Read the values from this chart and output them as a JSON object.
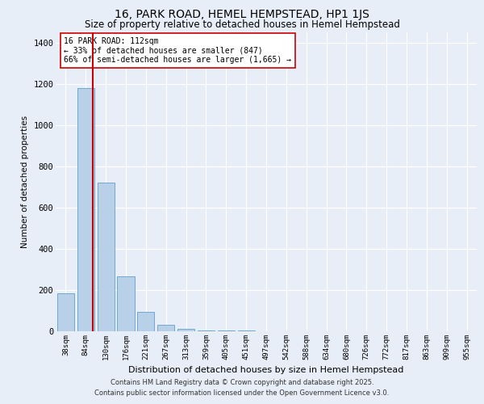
{
  "title": "16, PARK ROAD, HEMEL HEMPSTEAD, HP1 1JS",
  "subtitle": "Size of property relative to detached houses in Hemel Hempstead",
  "xlabel": "Distribution of detached houses by size in Hemel Hempstead",
  "ylabel": "Number of detached properties",
  "categories": [
    "38sqm",
    "84sqm",
    "130sqm",
    "176sqm",
    "221sqm",
    "267sqm",
    "313sqm",
    "359sqm",
    "405sqm",
    "451sqm",
    "497sqm",
    "542sqm",
    "588sqm",
    "634sqm",
    "680sqm",
    "726sqm",
    "772sqm",
    "817sqm",
    "863sqm",
    "909sqm",
    "955sqm"
  ],
  "values": [
    185,
    1180,
    720,
    265,
    95,
    30,
    10,
    5,
    3,
    2,
    1,
    1,
    1,
    0,
    0,
    0,
    0,
    0,
    0,
    0,
    0
  ],
  "bar_color": "#b8d0e8",
  "bar_edge_color": "#6fa8d0",
  "bg_color": "#e8eef7",
  "grid_color": "#ffffff",
  "vline_x": 1.35,
  "vline_color": "#cc0000",
  "annotation_text": "16 PARK ROAD: 112sqm\n← 33% of detached houses are smaller (847)\n66% of semi-detached houses are larger (1,665) →",
  "annotation_box_color": "#ffffff",
  "annotation_box_edge": "#cc0000",
  "ylim": [
    0,
    1450
  ],
  "yticks": [
    0,
    200,
    400,
    600,
    800,
    1000,
    1200,
    1400
  ],
  "footer1": "Contains HM Land Registry data © Crown copyright and database right 2025.",
  "footer2": "Contains public sector information licensed under the Open Government Licence v3.0."
}
